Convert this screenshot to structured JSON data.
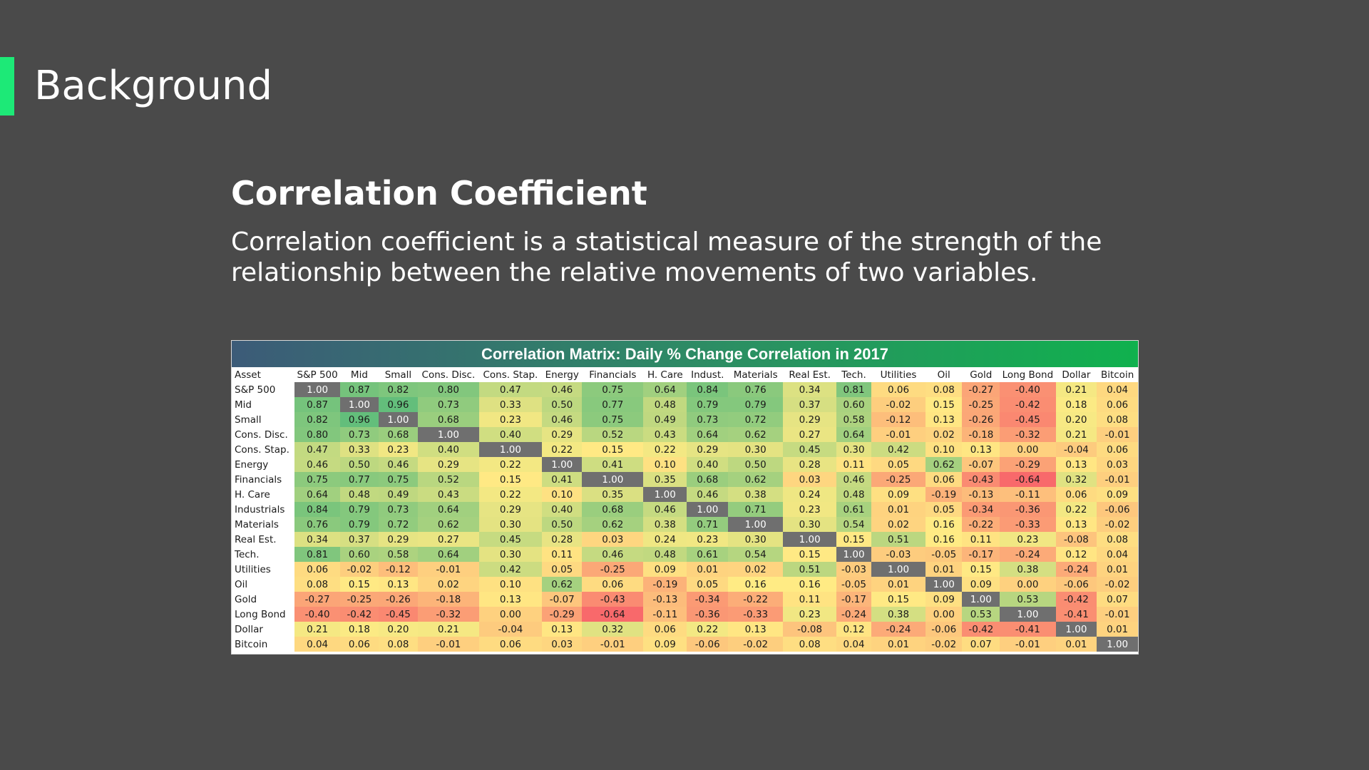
{
  "slide": {
    "title": "Background",
    "heading": "Correlation Coefficient",
    "body": "Correlation coefficient is a statistical measure of the strength of the relationship between the relative movements of two variables."
  },
  "colors": {
    "background": "#4a4a4a",
    "accent": "#1de977",
    "diagonal": "#6f6f6f",
    "scale_low": "#f8696b",
    "scale_mid": "#ffeb84",
    "scale_high": "#63be7b"
  },
  "chart_data": {
    "type": "heatmap",
    "title": "Correlation Matrix: Daily % Change Correlation in 2017",
    "corner_label": "Asset",
    "columns": [
      "S&P 500",
      "Mid",
      "Small",
      "Cons. Disc.",
      "Cons. Stap.",
      "Energy",
      "Financials",
      "H. Care",
      "Indust.",
      "Materials",
      "Real Est.",
      "Tech.",
      "Utilities",
      "Oil",
      "Gold",
      "Long Bond",
      "Dollar",
      "Bitcoin"
    ],
    "rows": [
      "S&P 500",
      "Mid",
      "Small",
      "Cons. Disc.",
      "Cons. Stap.",
      "Energy",
      "Financials",
      "H. Care",
      "Industrials",
      "Materials",
      "Real Est.",
      "Tech.",
      "Utilities",
      "Oil",
      "Gold",
      "Long Bond",
      "Dollar",
      "Bitcoin"
    ],
    "values": [
      [
        "1.00",
        "0.87",
        "0.82",
        "0.80",
        "0.47",
        "0.46",
        "0.75",
        "0.64",
        "0.84",
        "0.76",
        "0.34",
        "0.81",
        "0.06",
        "0.08",
        "-0.27",
        "-0.40",
        "0.21",
        "0.04"
      ],
      [
        "0.87",
        "1.00",
        "0.96",
        "0.73",
        "0.33",
        "0.50",
        "0.77",
        "0.48",
        "0.79",
        "0.79",
        "0.37",
        "0.60",
        "-0.02",
        "0.15",
        "-0.25",
        "-0.42",
        "0.18",
        "0.06"
      ],
      [
        "0.82",
        "0.96",
        "1.00",
        "0.68",
        "0.23",
        "0.46",
        "0.75",
        "0.49",
        "0.73",
        "0.72",
        "0.29",
        "0.58",
        "-0.12",
        "0.13",
        "-0.26",
        "-0.45",
        "0.20",
        "0.08"
      ],
      [
        "0.80",
        "0.73",
        "0.68",
        "1.00",
        "0.40",
        "0.29",
        "0.52",
        "0.43",
        "0.64",
        "0.62",
        "0.27",
        "0.64",
        "-0.01",
        "0.02",
        "-0.18",
        "-0.32",
        "0.21",
        "-0.01"
      ],
      [
        "0.47",
        "0.33",
        "0.23",
        "0.40",
        "1.00",
        "0.22",
        "0.15",
        "0.22",
        "0.29",
        "0.30",
        "0.45",
        "0.30",
        "0.42",
        "0.10",
        "0.13",
        "0.00",
        "-0.04",
        "0.06"
      ],
      [
        "0.46",
        "0.50",
        "0.46",
        "0.29",
        "0.22",
        "1.00",
        "0.41",
        "0.10",
        "0.40",
        "0.50",
        "0.28",
        "0.11",
        "0.05",
        "0.62",
        "-0.07",
        "-0.29",
        "0.13",
        "0.03"
      ],
      [
        "0.75",
        "0.77",
        "0.75",
        "0.52",
        "0.15",
        "0.41",
        "1.00",
        "0.35",
        "0.68",
        "0.62",
        "0.03",
        "0.46",
        "-0.25",
        "0.06",
        "-0.43",
        "-0.64",
        "0.32",
        "-0.01"
      ],
      [
        "0.64",
        "0.48",
        "0.49",
        "0.43",
        "0.22",
        "0.10",
        "0.35",
        "1.00",
        "0.46",
        "0.38",
        "0.24",
        "0.48",
        "0.09",
        "-0.19",
        "-0.13",
        "-0.11",
        "0.06",
        "0.09"
      ],
      [
        "0.84",
        "0.79",
        "0.73",
        "0.64",
        "0.29",
        "0.40",
        "0.68",
        "0.46",
        "1.00",
        "0.71",
        "0.23",
        "0.61",
        "0.01",
        "0.05",
        "-0.34",
        "-0.36",
        "0.22",
        "-0.06"
      ],
      [
        "0.76",
        "0.79",
        "0.72",
        "0.62",
        "0.30",
        "0.50",
        "0.62",
        "0.38",
        "0.71",
        "1.00",
        "0.30",
        "0.54",
        "0.02",
        "0.16",
        "-0.22",
        "-0.33",
        "0.13",
        "-0.02"
      ],
      [
        "0.34",
        "0.37",
        "0.29",
        "0.27",
        "0.45",
        "0.28",
        "0.03",
        "0.24",
        "0.23",
        "0.30",
        "1.00",
        "0.15",
        "0.51",
        "0.16",
        "0.11",
        "0.23",
        "-0.08",
        "0.08"
      ],
      [
        "0.81",
        "0.60",
        "0.58",
        "0.64",
        "0.30",
        "0.11",
        "0.46",
        "0.48",
        "0.61",
        "0.54",
        "0.15",
        "1.00",
        "-0.03",
        "-0.05",
        "-0.17",
        "-0.24",
        "0.12",
        "0.04"
      ],
      [
        "0.06",
        "-0.02",
        "-0.12",
        "-0.01",
        "0.42",
        "0.05",
        "-0.25",
        "0.09",
        "0.01",
        "0.02",
        "0.51",
        "-0.03",
        "1.00",
        "0.01",
        "0.15",
        "0.38",
        "-0.24",
        "0.01"
      ],
      [
        "0.08",
        "0.15",
        "0.13",
        "0.02",
        "0.10",
        "0.62",
        "0.06",
        "-0.19",
        "0.05",
        "0.16",
        "0.16",
        "-0.05",
        "0.01",
        "1.00",
        "0.09",
        "0.00",
        "-0.06",
        "-0.02"
      ],
      [
        "-0.27",
        "-0.25",
        "-0.26",
        "-0.18",
        "0.13",
        "-0.07",
        "-0.43",
        "-0.13",
        "-0.34",
        "-0.22",
        "0.11",
        "-0.17",
        "0.15",
        "0.09",
        "1.00",
        "0.53",
        "-0.42",
        "0.07"
      ],
      [
        "-0.40",
        "-0.42",
        "-0.45",
        "-0.32",
        "0.00",
        "-0.29",
        "-0.64",
        "-0.11",
        "-0.36",
        "-0.33",
        "0.23",
        "-0.24",
        "0.38",
        "0.00",
        "0.53",
        "1.00",
        "-0.41",
        "-0.01"
      ],
      [
        "0.21",
        "0.18",
        "0.20",
        "0.21",
        "-0.04",
        "0.13",
        "0.32",
        "0.06",
        "0.22",
        "0.13",
        "-0.08",
        "0.12",
        "-0.24",
        "-0.06",
        "-0.42",
        "-0.41",
        "1.00",
        "0.01"
      ],
      [
        "0.04",
        "0.06",
        "0.08",
        "-0.01",
        "0.06",
        "0.03",
        "-0.01",
        "0.09",
        "-0.06",
        "-0.02",
        "0.08",
        "0.04",
        "0.01",
        "-0.02",
        "0.07",
        "-0.01",
        "0.01",
        "1.00"
      ]
    ]
  }
}
